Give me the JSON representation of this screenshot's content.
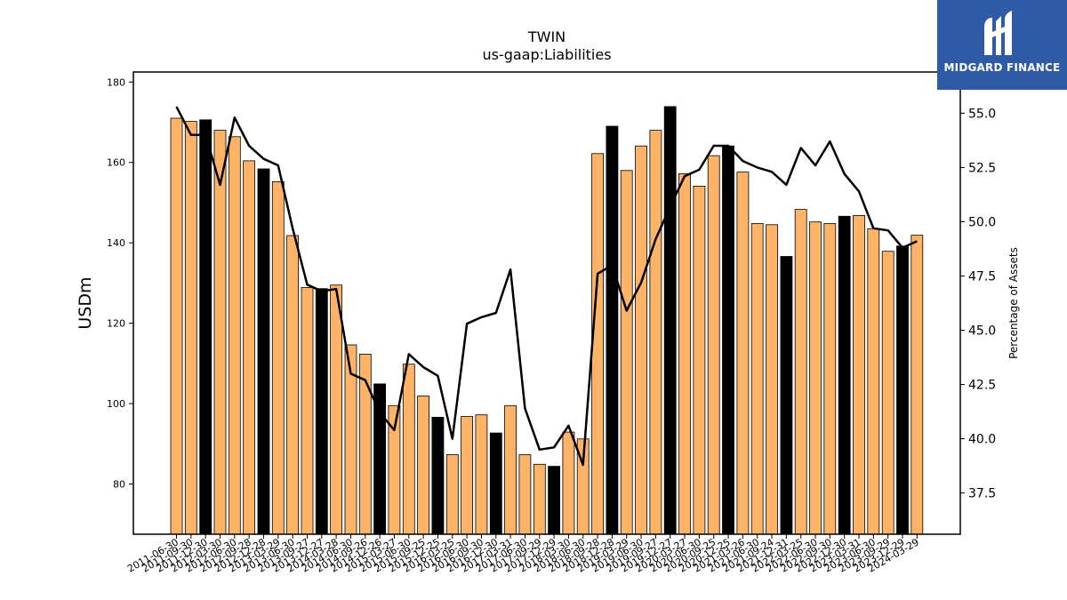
{
  "chart_data": {
    "type": "bar",
    "title": "TWIN",
    "subtitle": "us-gaap:Liabilities",
    "ylabel": "USDm",
    "ylabel_right": "Percentage of Assets",
    "ylim": [
      67.5,
      182.5
    ],
    "ylim_right": [
      35.6,
      56.9
    ],
    "yticks": [
      80,
      100,
      120,
      140,
      160,
      180
    ],
    "yticks_right": [
      "37.5",
      "40.0",
      "42.5",
      "45.0",
      "47.5",
      "50.0",
      "52.5",
      "55.0"
    ],
    "grid": false,
    "colors": {
      "quarter": "#ffb366",
      "fiscal_year_end": "#000000",
      "line": "#000000"
    },
    "categories": [
      "2011-06-30",
      "2011-09-30",
      "2011-12-30",
      "2012-03-30",
      "2012-06-30",
      "2012-09-28",
      "2012-12-28",
      "2013-03-29",
      "2013-06-30",
      "2013-09-27",
      "2013-12-27",
      "2014-03-28",
      "2014-06-30",
      "2014-09-26",
      "2014-12-26",
      "2015-03-27",
      "2015-06-30",
      "2015-09-25",
      "2015-12-25",
      "2016-03-25",
      "2016-06-30",
      "2016-09-30",
      "2016-12-30",
      "2017-03-31",
      "2017-06-30",
      "2017-09-29",
      "2017-12-29",
      "2018-03-30",
      "2018-06-30",
      "2018-09-28",
      "2018-12-28",
      "2019-03-29",
      "2019-06-30",
      "2019-09-27",
      "2019-12-27",
      "2020-03-27",
      "2020-06-30",
      "2020-09-25",
      "2020-12-25",
      "2021-03-26",
      "2021-06-30",
      "2021-09-24",
      "2021-12-31",
      "2022-03-25",
      "2022-06-30",
      "2022-09-30",
      "2022-12-30",
      "2023-03-31",
      "2023-06-30",
      "2023-09-29",
      "2023-12-29",
      "2024-03-29"
    ],
    "series": [
      {
        "values": [
          171.0,
          170.2,
          170.6,
          168.0,
          166.4,
          160.4,
          158.4,
          155.2,
          141.8,
          128.9,
          128.6,
          129.5,
          114.6,
          112.3,
          104.9,
          99.5,
          109.8,
          101.9,
          96.6,
          87.3,
          96.8,
          97.2,
          92.7,
          99.5,
          87.3,
          84.9,
          84.4,
          92.9,
          91.2,
          162.2,
          169.0,
          158.0,
          164.1,
          168.0,
          173.9,
          157.2,
          154.1,
          161.7,
          164.1,
          157.6,
          144.8,
          144.5,
          136.6,
          148.3,
          145.2,
          144.8,
          146.6,
          146.8,
          143.5,
          137.9,
          139.2,
          141.9
        ],
        "fiscal_year_end": [
          false,
          false,
          true,
          false,
          false,
          false,
          true,
          false,
          false,
          false,
          true,
          false,
          false,
          false,
          true,
          false,
          false,
          false,
          true,
          false,
          false,
          false,
          true,
          false,
          false,
          false,
          true,
          false,
          false,
          false,
          true,
          false,
          false,
          false,
          true,
          false,
          false,
          false,
          true,
          false,
          false,
          false,
          true,
          false,
          false,
          false,
          true,
          false,
          false,
          false,
          true,
          false
        ]
      },
      {
        "values": [
          55.3,
          54.0,
          54.0,
          51.7,
          54.8,
          53.5,
          52.9,
          52.6,
          49.7,
          47.1,
          46.8,
          46.9,
          43.0,
          42.7,
          41.2,
          40.4,
          43.9,
          43.3,
          42.9,
          40.0,
          45.3,
          45.6,
          45.8,
          47.8,
          41.4,
          39.5,
          39.6,
          40.6,
          38.8,
          47.6,
          48.0,
          45.9,
          47.2,
          49.2,
          50.7,
          52.1,
          52.4,
          53.5,
          53.5,
          52.8,
          52.5,
          52.3,
          51.7,
          53.4,
          52.6,
          53.7,
          52.2,
          51.4,
          49.7,
          49.6,
          48.8,
          49.1
        ]
      }
    ]
  },
  "branding": {
    "logo_text": "MIDGARD FINANCE"
  }
}
